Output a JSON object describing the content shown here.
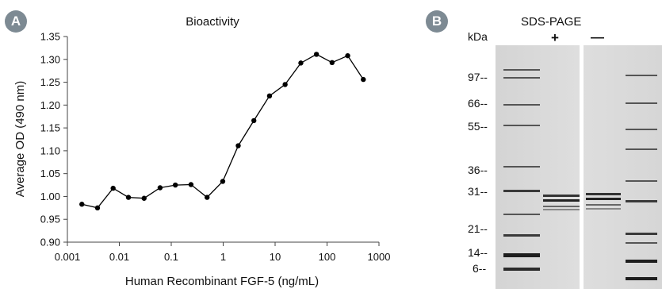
{
  "panel_a": {
    "badge": "A"
  },
  "panel_b": {
    "badge": "B",
    "title": "SDS-PAGE",
    "unit_label": "kDa",
    "lane_plus": "+",
    "lane_minus": "—",
    "markers": [
      {
        "label": "97--"
      },
      {
        "label": "66--"
      },
      {
        "label": "55--"
      },
      {
        "label": "36--"
      },
      {
        "label": "31--"
      },
      {
        "label": "21--"
      },
      {
        "label": "14--"
      },
      {
        "label": "6--"
      }
    ]
  },
  "colors": {
    "line": "#000000",
    "badge": "#7d8a93",
    "gel_bg": "#d9d9d9"
  },
  "chart_data": {
    "type": "line",
    "title": "Bioactivity",
    "xlabel": "Human Recombinant FGF-5 (ng/mL)",
    "ylabel": "Average OD (490 nm)",
    "x_scale": "log",
    "xlim": [
      0.001,
      1000
    ],
    "ylim": [
      0.9,
      1.35
    ],
    "x_ticks": [
      "0.001",
      "0.01",
      "0.1",
      "1",
      "10",
      "100",
      "1000"
    ],
    "y_ticks": [
      "0.90",
      "0.95",
      "1.00",
      "1.05",
      "1.10",
      "1.15",
      "1.20",
      "1.25",
      "1.30",
      "1.35"
    ],
    "grid": false,
    "x": [
      0.0019,
      0.0038,
      0.0076,
      0.015,
      0.03,
      0.061,
      0.12,
      0.24,
      0.49,
      0.98,
      1.95,
      3.9,
      7.8,
      15.6,
      31.3,
      62.5,
      125,
      250,
      500
    ],
    "y": [
      0.983,
      0.975,
      1.018,
      0.998,
      0.996,
      1.019,
      1.025,
      1.026,
      0.998,
      1.033,
      1.111,
      1.166,
      1.22,
      1.245,
      1.292,
      1.311,
      1.293,
      1.308,
      1.256
    ]
  }
}
